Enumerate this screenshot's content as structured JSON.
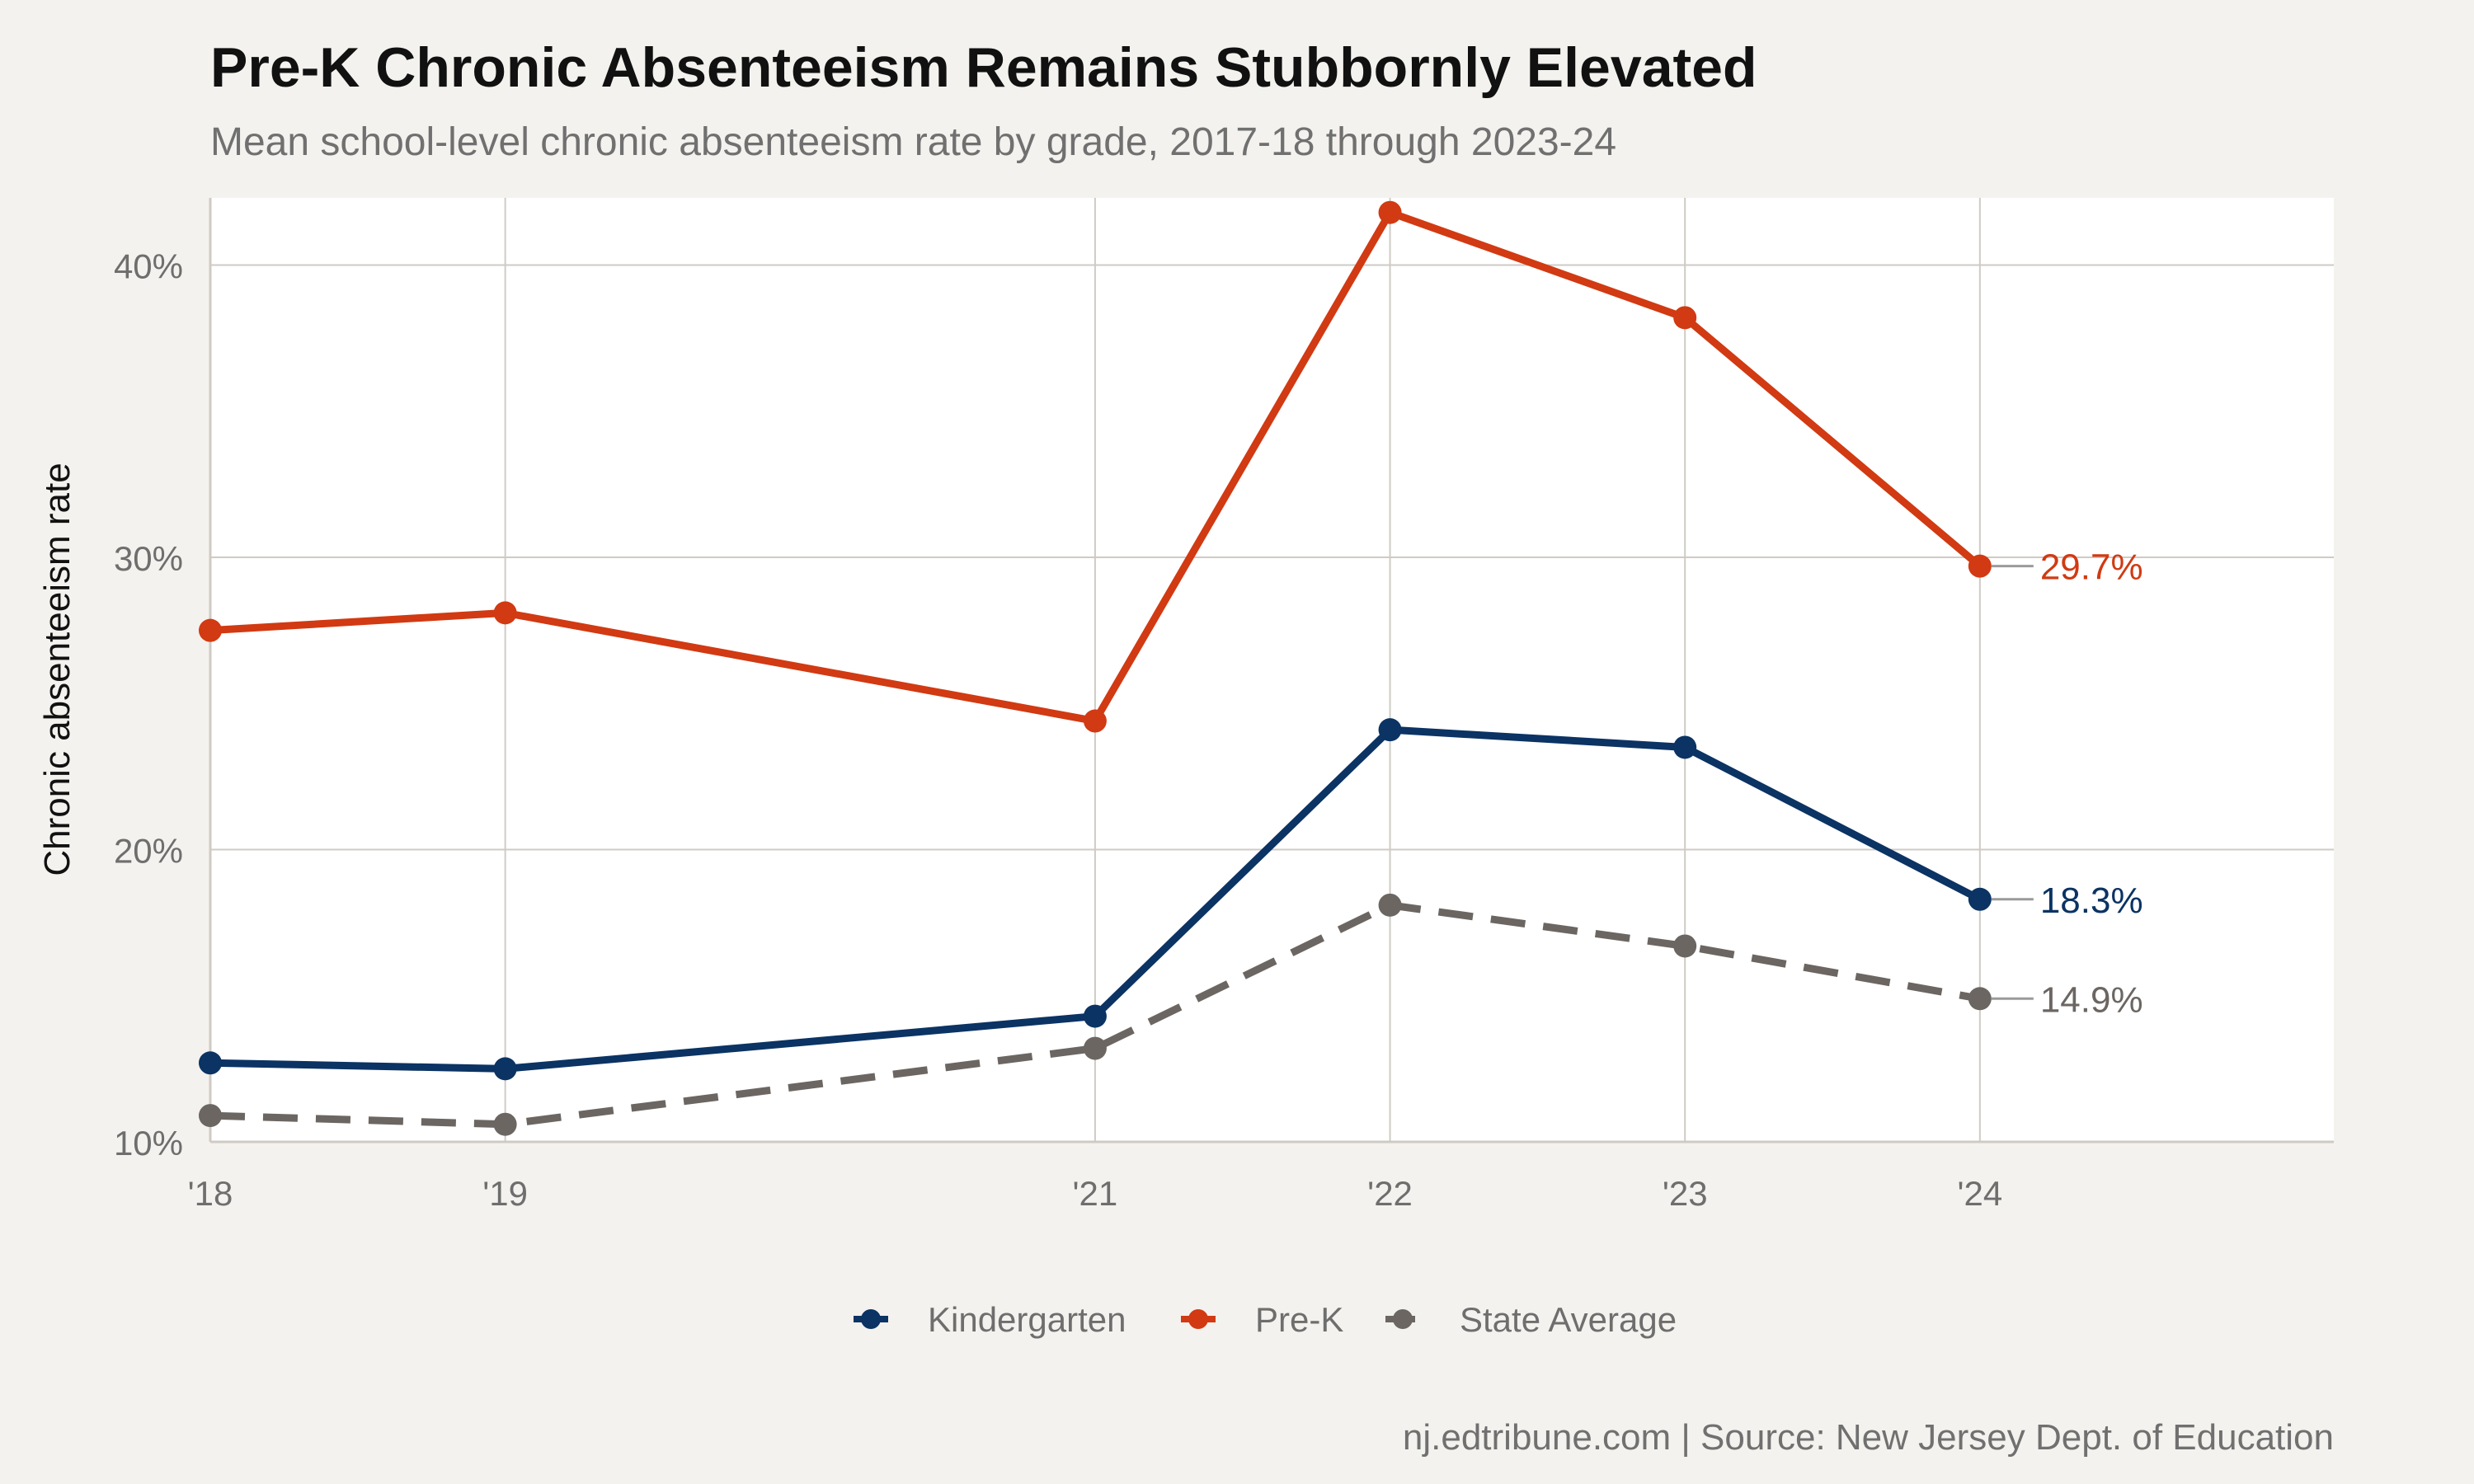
{
  "colors": {
    "background": "#f4f2ee",
    "panel": "#ffffff",
    "grid": "#cfcbc4",
    "kindergarten": "#0b3363",
    "prek": "#d13a12",
    "state": "#6b6662",
    "title": "#111111",
    "subtitle": "#707070",
    "tick": "#6e6e6e"
  },
  "chart_data": {
    "type": "line",
    "title": "Pre-K Chronic Absenteeism Remains Stubbornly Elevated",
    "subtitle": "Mean school-level chronic absenteeism rate by grade, 2017-18 through 2023-24",
    "xlabel": "",
    "ylabel": "Chronic absenteeism rate",
    "caption": "nj.edtribune.com | Source: New Jersey Dept. of Education",
    "x": [
      2018,
      2019,
      2021,
      2022,
      2023,
      2024
    ],
    "x_tick_labels": [
      "'18",
      "'19",
      "'21",
      "'22",
      "'23",
      "'24"
    ],
    "xlim": [
      2018,
      2025.2
    ],
    "ylim": [
      10,
      42.3
    ],
    "y_ticks": [
      10,
      20,
      30,
      40
    ],
    "y_tick_labels": [
      "10%",
      "20%",
      "30%",
      "40%"
    ],
    "grid": true,
    "legend_position": "bottom",
    "series": [
      {
        "key": "kindergarten",
        "name": "Kindergarten",
        "dashed": false,
        "values": [
          12.7,
          12.5,
          14.3,
          24.1,
          23.5,
          18.3
        ],
        "end_label": "18.3%"
      },
      {
        "key": "prek",
        "name": "Pre-K",
        "dashed": false,
        "values": [
          27.5,
          28.1,
          24.4,
          41.8,
          38.2,
          29.7
        ],
        "end_label": "29.7%"
      },
      {
        "key": "state",
        "name": "State Average",
        "dashed": true,
        "values": [
          10.9,
          10.6,
          13.2,
          18.1,
          16.7,
          14.9
        ],
        "end_label": "14.9%"
      }
    ]
  }
}
